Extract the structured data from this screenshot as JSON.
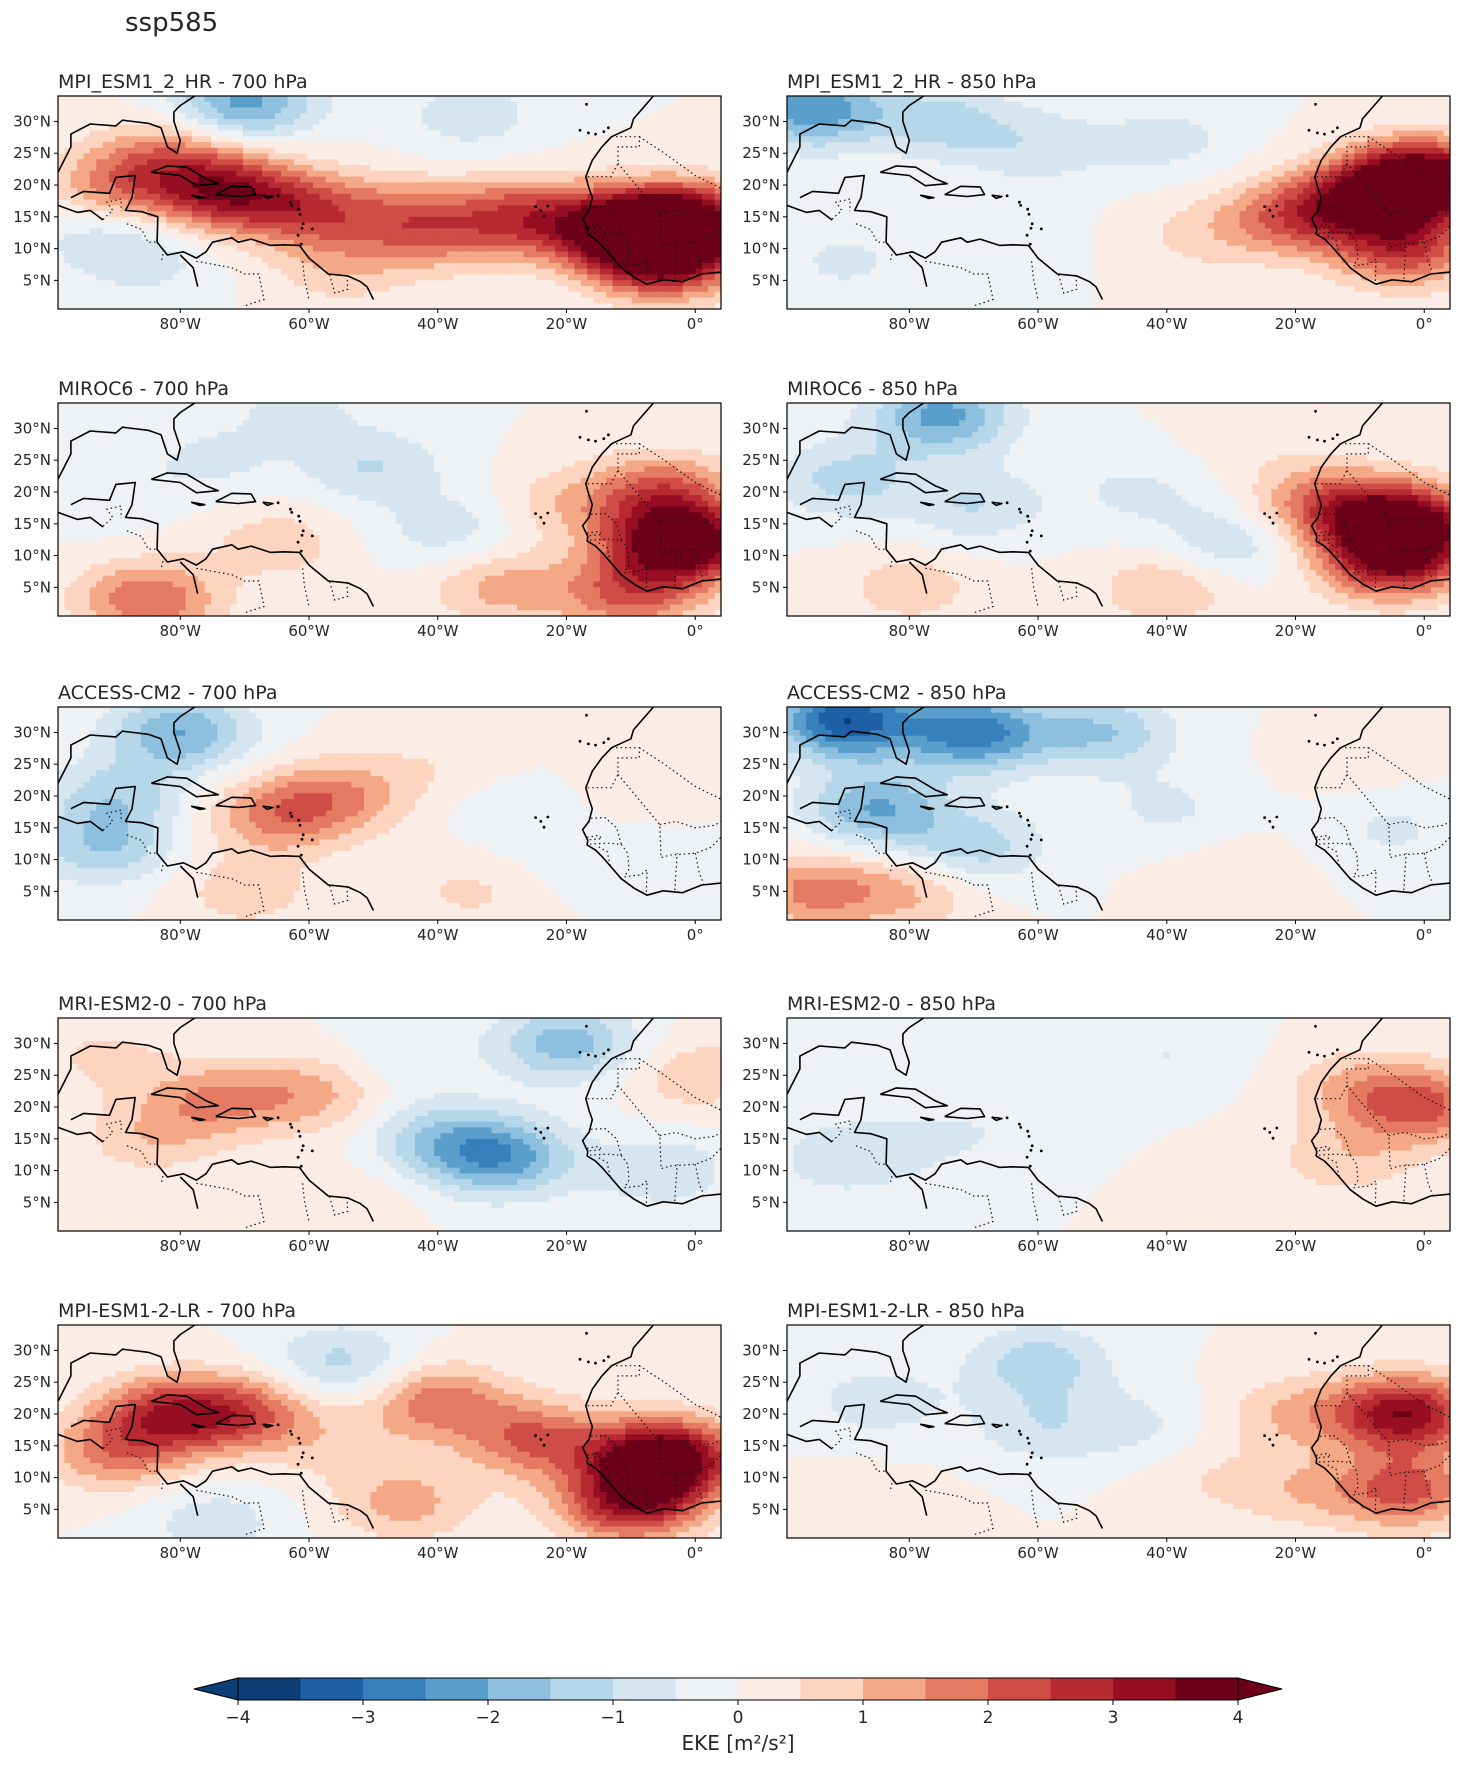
{
  "figure": {
    "title": "ssp585"
  },
  "panels": [
    {
      "title": "MPI_ESM1_2_HR - 700 hPa",
      "field": [
        {
          "lon": -89,
          "lat": 20,
          "val": 1.6
        },
        {
          "lon": -73,
          "lat": 19,
          "val": 3.0
        },
        {
          "lon": -82,
          "lat": 25,
          "val": 1.2
        },
        {
          "lon": -60,
          "lat": 16,
          "val": 2.0
        },
        {
          "lon": -45,
          "lat": 15,
          "val": 1.3
        },
        {
          "lon": -40,
          "lat": 12,
          "val": 1.0
        },
        {
          "lon": -27,
          "lat": 15,
          "val": 2.2
        },
        {
          "lon": -12,
          "lat": 13,
          "val": 3.3
        },
        {
          "lon": -2,
          "lat": 14,
          "val": 4.2
        },
        {
          "lon": -5,
          "lat": 8,
          "val": 3.0
        },
        {
          "lon": -70,
          "lat": 33,
          "val": -2.2
        },
        {
          "lon": -35,
          "lat": 31,
          "val": -0.8
        },
        {
          "lon": -85,
          "lat": 8,
          "val": -0.6
        },
        {
          "lon": -55,
          "lat": 7,
          "val": 0.8
        },
        {
          "lon": -92,
          "lat": 12,
          "val": -0.7
        }
      ]
    },
    {
      "title": "MPI_ESM1_2_HR - 850 hPa",
      "field": [
        {
          "lon": -95,
          "lat": 32,
          "val": -2.4
        },
        {
          "lon": -75,
          "lat": 30,
          "val": -1.2
        },
        {
          "lon": -60,
          "lat": 26,
          "val": -0.8
        },
        {
          "lon": -40,
          "lat": 27,
          "val": -0.7
        },
        {
          "lon": -20,
          "lat": 15,
          "val": 2.0
        },
        {
          "lon": -8,
          "lat": 18,
          "val": 2.8
        },
        {
          "lon": 0,
          "lat": 21,
          "val": 4.2
        },
        {
          "lon": -3,
          "lat": 10,
          "val": 2.4
        },
        {
          "lon": -90,
          "lat": 8,
          "val": -0.6
        },
        {
          "lon": -35,
          "lat": 12,
          "val": 0.6
        },
        {
          "lon": -65,
          "lat": 12,
          "val": -0.3
        }
      ]
    },
    {
      "title": "MIROC6 - 700 hPa",
      "field": [
        {
          "lon": -85,
          "lat": 3,
          "val": 2.0
        },
        {
          "lon": -75,
          "lat": 25,
          "val": -0.6
        },
        {
          "lon": -50,
          "lat": 24,
          "val": -1.0
        },
        {
          "lon": -38,
          "lat": 14,
          "val": -0.8
        },
        {
          "lon": -20,
          "lat": 18,
          "val": 0.8
        },
        {
          "lon": -2,
          "lat": 12,
          "val": 4.5
        },
        {
          "lon": -5,
          "lat": 20,
          "val": 2.0
        },
        {
          "lon": -30,
          "lat": 5,
          "val": 1.2
        },
        {
          "lon": -10,
          "lat": 4,
          "val": 2.0
        },
        {
          "lon": -65,
          "lat": 12,
          "val": 0.8
        },
        {
          "lon": -92,
          "lat": 20,
          "val": -0.4
        },
        {
          "lon": -62,
          "lat": 33,
          "val": -0.6
        }
      ]
    },
    {
      "title": "MIROC6 - 850 hPa",
      "field": [
        {
          "lon": -75,
          "lat": 32,
          "val": -2.2
        },
        {
          "lon": -90,
          "lat": 22,
          "val": -1.2
        },
        {
          "lon": -70,
          "lat": 18,
          "val": -1.0
        },
        {
          "lon": -45,
          "lat": 20,
          "val": -0.6
        },
        {
          "lon": -30,
          "lat": 12,
          "val": -1.0
        },
        {
          "lon": -15,
          "lat": 18,
          "val": 2.0
        },
        {
          "lon": -3,
          "lat": 15,
          "val": 4.0
        },
        {
          "lon": -5,
          "lat": 9,
          "val": 3.0
        },
        {
          "lon": -40,
          "lat": 5,
          "val": 1.0
        },
        {
          "lon": -80,
          "lat": 5,
          "val": 0.8
        },
        {
          "lon": -25,
          "lat": 28,
          "val": 0.3
        }
      ]
    },
    {
      "title": "ACCESS-CM2 - 700 hPa",
      "field": [
        {
          "lon": -80,
          "lat": 30,
          "val": -2.0
        },
        {
          "lon": -90,
          "lat": 20,
          "val": -1.2
        },
        {
          "lon": -92,
          "lat": 12,
          "val": -1.4
        },
        {
          "lon": -65,
          "lat": 17,
          "val": 1.6
        },
        {
          "lon": -55,
          "lat": 20,
          "val": 1.3
        },
        {
          "lon": -40,
          "lat": 25,
          "val": 0.4
        },
        {
          "lon": -30,
          "lat": 18,
          "val": -0.3
        },
        {
          "lon": -20,
          "lat": 10,
          "val": -0.3
        },
        {
          "lon": -70,
          "lat": 5,
          "val": 0.8
        },
        {
          "lon": -35,
          "lat": 5,
          "val": 0.6
        },
        {
          "lon": -5,
          "lat": 22,
          "val": 0.5
        },
        {
          "lon": -3,
          "lat": 10,
          "val": -0.3
        }
      ]
    },
    {
      "title": "ACCESS-CM2 - 850 hPa",
      "field": [
        {
          "lon": -90,
          "lat": 32,
          "val": -3.4
        },
        {
          "lon": -70,
          "lat": 30,
          "val": -2.8
        },
        {
          "lon": -50,
          "lat": 30,
          "val": -1.5
        },
        {
          "lon": -85,
          "lat": 18,
          "val": -2.0
        },
        {
          "lon": -70,
          "lat": 12,
          "val": -1.3
        },
        {
          "lon": -40,
          "lat": 18,
          "val": -0.6
        },
        {
          "lon": -95,
          "lat": 5,
          "val": 1.6
        },
        {
          "lon": -80,
          "lat": 5,
          "val": 1.0
        },
        {
          "lon": -30,
          "lat": 8,
          "val": 0.3
        },
        {
          "lon": -5,
          "lat": 15,
          "val": -0.6
        },
        {
          "lon": -10,
          "lat": 25,
          "val": 0.3
        }
      ]
    },
    {
      "title": "MRI-ESM2-0 - 700 hPa",
      "field": [
        {
          "lon": -75,
          "lat": 21,
          "val": 1.4
        },
        {
          "lon": -60,
          "lat": 22,
          "val": 1.2
        },
        {
          "lon": -85,
          "lat": 15,
          "val": 0.8
        },
        {
          "lon": -30,
          "lat": 12,
          "val": -2.2
        },
        {
          "lon": -40,
          "lat": 15,
          "val": -1.3
        },
        {
          "lon": -20,
          "lat": 30,
          "val": -1.8
        },
        {
          "lon": -5,
          "lat": 10,
          "val": -0.9
        },
        {
          "lon": 0,
          "lat": 25,
          "val": 0.9
        },
        {
          "lon": -92,
          "lat": 28,
          "val": 0.6
        },
        {
          "lon": -55,
          "lat": 5,
          "val": 0.5
        },
        {
          "lon": -45,
          "lat": 28,
          "val": -0.4
        }
      ]
    },
    {
      "title": "MRI-ESM2-0 - 850 hPa",
      "field": [
        {
          "lon": 0,
          "lat": 20,
          "val": 2.0
        },
        {
          "lon": -10,
          "lat": 23,
          "val": 1.0
        },
        {
          "lon": -12,
          "lat": 12,
          "val": 0.8
        },
        {
          "lon": -40,
          "lat": 28,
          "val": -0.5
        },
        {
          "lon": -90,
          "lat": 12,
          "val": -0.9
        },
        {
          "lon": -75,
          "lat": 15,
          "val": -0.5
        },
        {
          "lon": -60,
          "lat": 18,
          "val": -0.3
        },
        {
          "lon": -30,
          "lat": 8,
          "val": 0.2
        }
      ]
    },
    {
      "title": "MPI-ESM1-2-LR - 700 hPa",
      "field": [
        {
          "lon": -82,
          "lat": 20,
          "val": 2.4
        },
        {
          "lon": -70,
          "lat": 20,
          "val": 2.0
        },
        {
          "lon": -90,
          "lat": 14,
          "val": 1.6
        },
        {
          "lon": -40,
          "lat": 22,
          "val": 1.8
        },
        {
          "lon": -25,
          "lat": 16,
          "val": 2.0
        },
        {
          "lon": -5,
          "lat": 13,
          "val": 4.5
        },
        {
          "lon": -10,
          "lat": 6,
          "val": 3.0
        },
        {
          "lon": -55,
          "lat": 28,
          "val": -1.2
        },
        {
          "lon": -75,
          "lat": 3,
          "val": -0.8
        },
        {
          "lon": -45,
          "lat": 6,
          "val": 1.2
        },
        {
          "lon": -55,
          "lat": 15,
          "val": 0.6
        }
      ]
    },
    {
      "title": "MPI-ESM1-2-LR - 850 hPa",
      "field": [
        {
          "lon": -60,
          "lat": 28,
          "val": -1.3
        },
        {
          "lon": -85,
          "lat": 22,
          "val": -0.8
        },
        {
          "lon": -60,
          "lat": 18,
          "val": -0.8
        },
        {
          "lon": -45,
          "lat": 18,
          "val": -0.6
        },
        {
          "lon": -20,
          "lat": 20,
          "val": 1.0
        },
        {
          "lon": -3,
          "lat": 20,
          "val": 3.4
        },
        {
          "lon": -3,
          "lat": 8,
          "val": 2.2
        },
        {
          "lon": -20,
          "lat": 8,
          "val": 0.8
        },
        {
          "lon": -35,
          "lat": 10,
          "val": 0.4
        },
        {
          "lon": -85,
          "lat": 5,
          "val": 0.4
        }
      ]
    }
  ],
  "axes": {
    "lon_ticks": [
      "80°W",
      "60°W",
      "40°W",
      "20°W",
      "0°"
    ],
    "lat_ticks": [
      "30°N",
      "25°N",
      "20°N",
      "15°N",
      "10°N",
      "5°N"
    ],
    "lon_values": [
      -80,
      -60,
      -40,
      -20,
      0
    ],
    "lat_values": [
      30,
      25,
      20,
      15,
      10,
      5
    ],
    "lon_range": [
      -99,
      4
    ],
    "lat_range": [
      0.5,
      34
    ]
  },
  "colorbar": {
    "label": "EKE [m²/s²]",
    "ticks": [
      "−4",
      "−3",
      "−2",
      "−1",
      "0",
      "1",
      "2",
      "3",
      "4"
    ],
    "tick_values": [
      -4,
      -3,
      -2,
      -1,
      0,
      1,
      2,
      3,
      4
    ],
    "levels": [
      -4,
      -3.5,
      -3,
      -2.5,
      -2,
      -1.5,
      -1,
      -0.5,
      0,
      0.5,
      1,
      1.5,
      2,
      2.5,
      3,
      3.5,
      4
    ],
    "colors": [
      "#0c3d74",
      "#1f5fa6",
      "#3580bd",
      "#5a9fcc",
      "#8dc0de",
      "#b6d6e9",
      "#d6e6f1",
      "#eef2f5",
      "#fbede5",
      "#fcd4bf",
      "#f4a886",
      "#e57a63",
      "#cf4d46",
      "#b82a31",
      "#970e23",
      "#6c0019"
    ],
    "extend": "both"
  },
  "chart_data": {
    "type": "heatmap",
    "title": "ssp585",
    "colorbar_label": "EKE [m²/s²]",
    "colorbar_range": [
      -4,
      4
    ],
    "lon_ticks": [
      "80°W",
      "60°W",
      "40°W",
      "20°W",
      "0°"
    ],
    "lat_ticks": [
      "30°N",
      "25°N",
      "20°N",
      "15°N",
      "10°N",
      "5°N"
    ],
    "panels": [
      "MPI_ESM1_2_HR - 700 hPa",
      "MPI_ESM1_2_HR - 850 hPa",
      "MIROC6 - 700 hPa",
      "MIROC6 - 850 hPa",
      "ACCESS-CM2 - 700 hPa",
      "ACCESS-CM2 - 850 hPa",
      "MRI-ESM2-0 - 700 hPa",
      "MRI-ESM2-0 - 850 hPa",
      "MPI-ESM1-2-LR - 700 hPa",
      "MPI-ESM1-2-LR - 850 hPa"
    ]
  }
}
